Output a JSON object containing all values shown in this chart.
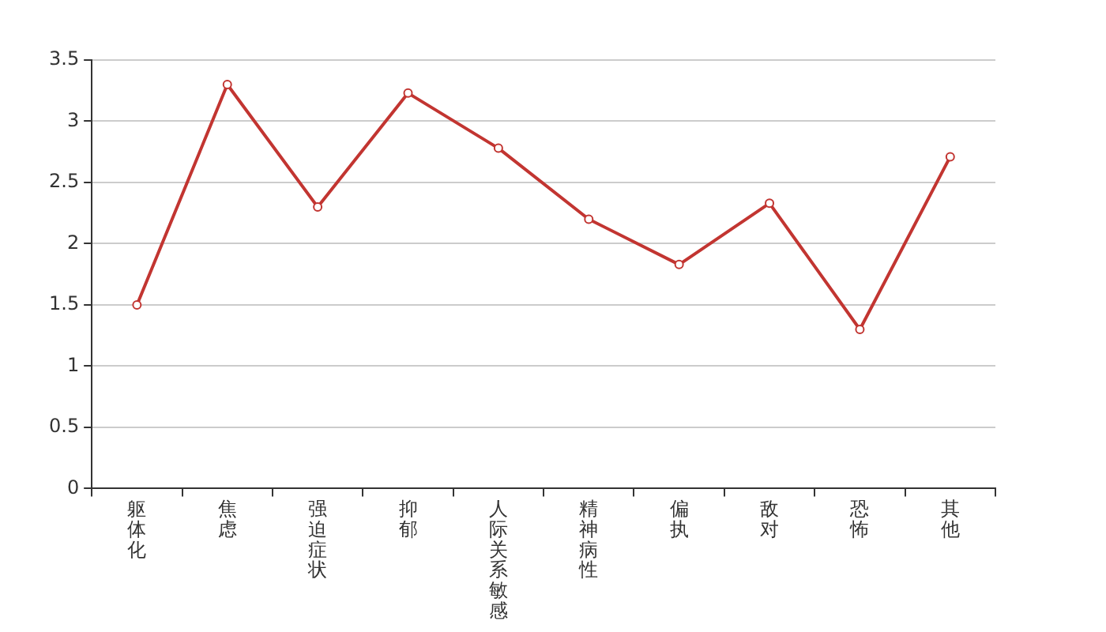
{
  "chart_data": {
    "type": "line",
    "categories": [
      "躯体化",
      "焦虑",
      "强迫症状",
      "抑郁",
      "人际关系敏感",
      "精神病性",
      "偏执",
      "敌对",
      "恐怖",
      "其他"
    ],
    "series": [
      {
        "color": "#c23531",
        "values": [
          1.5,
          3.3,
          2.3,
          3.23,
          2.78,
          2.2,
          1.83,
          2.33,
          1.3,
          2.71
        ]
      }
    ],
    "ylim": [
      0,
      3.5
    ],
    "yticks": [
      0,
      0.5,
      1,
      1.5,
      2,
      2.5,
      3,
      3.5
    ],
    "grid": "y",
    "marker": "circle",
    "line_style": "solid"
  }
}
